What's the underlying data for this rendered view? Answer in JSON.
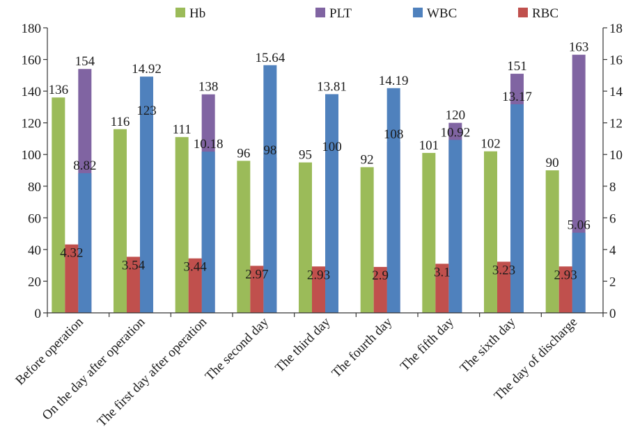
{
  "chart_data": {
    "type": "bar",
    "categories": [
      "Before operation",
      "On the day after operation",
      "The first day after operation",
      "The second day",
      "The third day",
      "The fourth day",
      "The fifth day",
      "The sixth day",
      "The day of discharge"
    ],
    "series": [
      {
        "name": "Hb",
        "axis": "left",
        "color": "#9bbb59",
        "values": [
          136,
          116,
          111,
          96,
          95,
          92,
          101,
          102,
          90
        ],
        "labels": [
          "136",
          "116",
          "111",
          "96",
          "95",
          "92",
          "101",
          "102",
          "90"
        ]
      },
      {
        "name": "PLT",
        "axis": "left",
        "color": "#8064a2",
        "values": [
          154,
          123,
          138,
          98,
          100,
          108,
          120,
          151,
          163
        ],
        "labels": [
          "154",
          "123",
          "138",
          "98",
          "100",
          "108",
          "120",
          "151",
          "163"
        ]
      },
      {
        "name": "WBC",
        "axis": "right",
        "color": "#4f81bd",
        "values": [
          8.82,
          14.92,
          10.18,
          15.64,
          13.81,
          14.19,
          10.92,
          13.17,
          5.06
        ],
        "labels": [
          "8.82",
          "14.92",
          "10.18",
          "15.64",
          "13.81",
          "14.19",
          "10.92",
          "13.17",
          "5.06"
        ]
      },
      {
        "name": "RBC",
        "axis": "right",
        "color": "#c0504d",
        "values": [
          4.32,
          3.54,
          3.44,
          2.97,
          2.93,
          2.9,
          3.1,
          3.23,
          2.93
        ],
        "labels": [
          "4.32",
          "3.54",
          "3.44",
          "2.97",
          "2.93",
          "2.9",
          "3.1",
          "3.23",
          "2.93"
        ]
      }
    ],
    "legend_order": [
      "Hb",
      "PLT",
      "WBC",
      "RBC"
    ],
    "legend_placement": "top-center",
    "y_left": {
      "min": 0,
      "max": 180,
      "step": 20,
      "ticks": [
        "0",
        "20",
        "40",
        "60",
        "80",
        "100",
        "120",
        "140",
        "160",
        "180"
      ]
    },
    "y_right": {
      "min": 0,
      "max": 18,
      "step": 2,
      "ticks": [
        "0",
        "2",
        "4",
        "6",
        "8",
        "10",
        "12",
        "14",
        "16",
        "18"
      ]
    },
    "grid": false,
    "title": "",
    "xlabel": "",
    "ylabel_left": "",
    "ylabel_right": ""
  }
}
